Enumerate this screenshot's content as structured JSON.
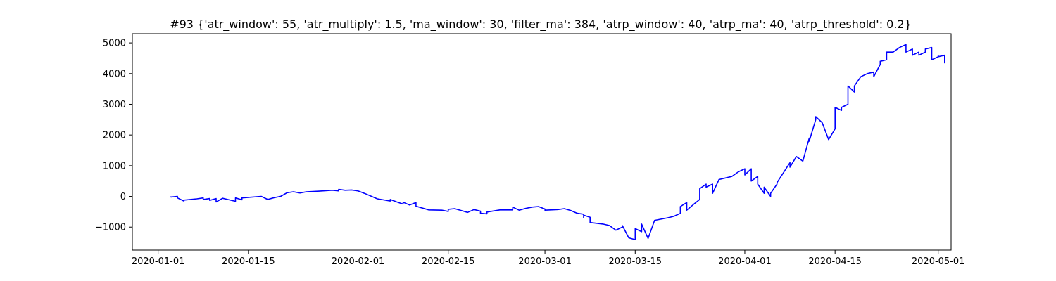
{
  "chart_data": {
    "type": "line",
    "title": "#93 {'atr_window': 55, 'atr_multiply': 1.5, 'ma_window': 30, 'filter_ma': 384, 'atrp_window': 40, 'atrp_ma': 40, 'atrp_threshold': 0.2}",
    "xlabel": "",
    "ylabel": "",
    "x_is_date": true,
    "xlim": [
      "2019-12-28",
      "2020-05-03"
    ],
    "ylim": [
      -1750,
      5300
    ],
    "grid": false,
    "line_color": "#0000ff",
    "x_ticks": [
      "2020-01-01",
      "2020-01-15",
      "2020-02-01",
      "2020-02-15",
      "2020-03-01",
      "2020-03-15",
      "2020-04-01",
      "2020-04-15",
      "2020-05-01"
    ],
    "y_ticks": [
      -1000,
      0,
      1000,
      2000,
      3000,
      4000,
      5000
    ],
    "series": [
      {
        "points": [
          [
            "2020-01-03",
            0
          ],
          [
            "2020-01-03",
            -20
          ],
          [
            "2020-01-04",
            0
          ],
          [
            "2020-01-04",
            -50
          ],
          [
            "2020-01-05",
            -150
          ],
          [
            "2020-01-05",
            -120
          ],
          [
            "2020-01-07",
            -80
          ],
          [
            "2020-01-08",
            -50
          ],
          [
            "2020-01-08",
            -100
          ],
          [
            "2020-01-09",
            -70
          ],
          [
            "2020-01-09",
            -130
          ],
          [
            "2020-01-10",
            -70
          ],
          [
            "2020-01-10",
            -180
          ],
          [
            "2020-01-11",
            -60
          ],
          [
            "2020-01-12",
            -110
          ],
          [
            "2020-01-13",
            -160
          ],
          [
            "2020-01-13",
            -50
          ],
          [
            "2020-01-14",
            -110
          ],
          [
            "2020-01-14",
            -50
          ],
          [
            "2020-01-15",
            -30
          ],
          [
            "2020-01-17",
            0
          ],
          [
            "2020-01-18",
            -100
          ],
          [
            "2020-01-19",
            -40
          ],
          [
            "2020-01-20",
            0
          ],
          [
            "2020-01-21",
            120
          ],
          [
            "2020-01-22",
            150
          ],
          [
            "2020-01-23",
            110
          ],
          [
            "2020-01-24",
            150
          ],
          [
            "2020-01-26",
            170
          ],
          [
            "2020-01-28",
            200
          ],
          [
            "2020-01-29",
            180
          ],
          [
            "2020-01-29",
            230
          ],
          [
            "2020-01-30",
            200
          ],
          [
            "2020-01-31",
            210
          ],
          [
            "2020-02-01",
            180
          ],
          [
            "2020-02-02",
            100
          ],
          [
            "2020-02-04",
            -80
          ],
          [
            "2020-02-06",
            -150
          ],
          [
            "2020-02-06",
            -100
          ],
          [
            "2020-02-07",
            -180
          ],
          [
            "2020-02-08",
            -250
          ],
          [
            "2020-02-08",
            -190
          ],
          [
            "2020-02-09",
            -280
          ],
          [
            "2020-02-10",
            -200
          ],
          [
            "2020-02-10",
            -320
          ],
          [
            "2020-02-12",
            -440
          ],
          [
            "2020-02-14",
            -450
          ],
          [
            "2020-02-15",
            -490
          ],
          [
            "2020-02-15",
            -420
          ],
          [
            "2020-02-16",
            -400
          ],
          [
            "2020-02-17",
            -460
          ],
          [
            "2020-02-18",
            -520
          ],
          [
            "2020-02-19",
            -430
          ],
          [
            "2020-02-20",
            -480
          ],
          [
            "2020-02-20",
            -550
          ],
          [
            "2020-02-21",
            -570
          ],
          [
            "2020-02-21",
            -510
          ],
          [
            "2020-02-23",
            -440
          ],
          [
            "2020-02-25",
            -440
          ],
          [
            "2020-02-25",
            -350
          ],
          [
            "2020-02-26",
            -450
          ],
          [
            "2020-02-27",
            -390
          ],
          [
            "2020-02-28",
            -350
          ],
          [
            "2020-02-29",
            -330
          ],
          [
            "2020-03-01",
            -410
          ],
          [
            "2020-03-01",
            -450
          ],
          [
            "2020-03-03",
            -430
          ],
          [
            "2020-03-04",
            -400
          ],
          [
            "2020-03-05",
            -460
          ],
          [
            "2020-03-06",
            -550
          ],
          [
            "2020-03-07",
            -580
          ],
          [
            "2020-03-07",
            -700
          ],
          [
            "2020-03-07",
            -610
          ],
          [
            "2020-03-08",
            -680
          ],
          [
            "2020-03-08",
            -850
          ],
          [
            "2020-03-10",
            -900
          ],
          [
            "2020-03-11",
            -950
          ],
          [
            "2020-03-12",
            -1100
          ],
          [
            "2020-03-13",
            -1000
          ],
          [
            "2020-03-13",
            -950
          ],
          [
            "2020-03-14",
            -1350
          ],
          [
            "2020-03-15",
            -1410
          ],
          [
            "2020-03-15",
            -1050
          ],
          [
            "2020-03-16",
            -1150
          ],
          [
            "2020-03-16",
            -900
          ],
          [
            "2020-03-17",
            -1370
          ],
          [
            "2020-03-18",
            -780
          ],
          [
            "2020-03-20",
            -700
          ],
          [
            "2020-03-21",
            -650
          ],
          [
            "2020-03-22",
            -550
          ],
          [
            "2020-03-22",
            -330
          ],
          [
            "2020-03-23",
            -200
          ],
          [
            "2020-03-23",
            -450
          ],
          [
            "2020-03-24",
            -270
          ],
          [
            "2020-03-25",
            -100
          ],
          [
            "2020-03-25",
            250
          ],
          [
            "2020-03-26",
            400
          ],
          [
            "2020-03-26",
            300
          ],
          [
            "2020-03-27",
            400
          ],
          [
            "2020-03-27",
            100
          ],
          [
            "2020-03-28",
            550
          ],
          [
            "2020-03-29",
            600
          ],
          [
            "2020-03-30",
            650
          ],
          [
            "2020-03-31",
            800
          ],
          [
            "2020-04-01",
            900
          ],
          [
            "2020-04-01",
            700
          ],
          [
            "2020-04-02",
            900
          ],
          [
            "2020-04-02",
            500
          ],
          [
            "2020-04-03",
            650
          ],
          [
            "2020-04-03",
            400
          ],
          [
            "2020-04-04",
            100
          ],
          [
            "2020-04-04",
            300
          ],
          [
            "2020-04-05",
            0
          ],
          [
            "2020-04-05",
            100
          ],
          [
            "2020-04-06",
            400
          ],
          [
            "2020-04-06",
            450
          ],
          [
            "2020-04-08",
            1100
          ],
          [
            "2020-04-08",
            950
          ],
          [
            "2020-04-09",
            1300
          ],
          [
            "2020-04-10",
            1150
          ],
          [
            "2020-04-11",
            1900
          ],
          [
            "2020-04-11",
            1800
          ],
          [
            "2020-04-12",
            2500
          ],
          [
            "2020-04-12",
            2600
          ],
          [
            "2020-04-13",
            2400
          ],
          [
            "2020-04-14",
            1850
          ],
          [
            "2020-04-15",
            2200
          ],
          [
            "2020-04-15",
            2900
          ],
          [
            "2020-04-16",
            2800
          ],
          [
            "2020-04-16",
            2900
          ],
          [
            "2020-04-17",
            3000
          ],
          [
            "2020-04-17",
            3600
          ],
          [
            "2020-04-18",
            3400
          ],
          [
            "2020-04-18",
            3600
          ],
          [
            "2020-04-19",
            3900
          ],
          [
            "2020-04-20",
            4000
          ],
          [
            "2020-04-21",
            4050
          ],
          [
            "2020-04-21",
            3900
          ],
          [
            "2020-04-22",
            4300
          ],
          [
            "2020-04-22",
            4400
          ],
          [
            "2020-04-23",
            4450
          ],
          [
            "2020-04-23",
            4700
          ],
          [
            "2020-04-24",
            4700
          ],
          [
            "2020-04-25",
            4850
          ],
          [
            "2020-04-26",
            4950
          ],
          [
            "2020-04-26",
            4700
          ],
          [
            "2020-04-27",
            4800
          ],
          [
            "2020-04-27",
            4600
          ],
          [
            "2020-04-28",
            4700
          ],
          [
            "2020-04-28",
            4600
          ],
          [
            "2020-04-29",
            4700
          ],
          [
            "2020-04-29",
            4800
          ],
          [
            "2020-04-30",
            4850
          ],
          [
            "2020-04-30",
            4450
          ],
          [
            "2020-05-01",
            4550
          ],
          [
            "2020-05-01",
            4600
          ],
          [
            "2020-05-01",
            4550
          ],
          [
            "2020-05-02",
            4600
          ],
          [
            "2020-05-02",
            4500
          ],
          [
            "2020-05-02",
            4400
          ],
          [
            "2020-05-02",
            4350
          ],
          [
            "2020-05-02",
            4400
          ],
          [
            "2020-05-02",
            4380
          ]
        ]
      }
    ]
  }
}
